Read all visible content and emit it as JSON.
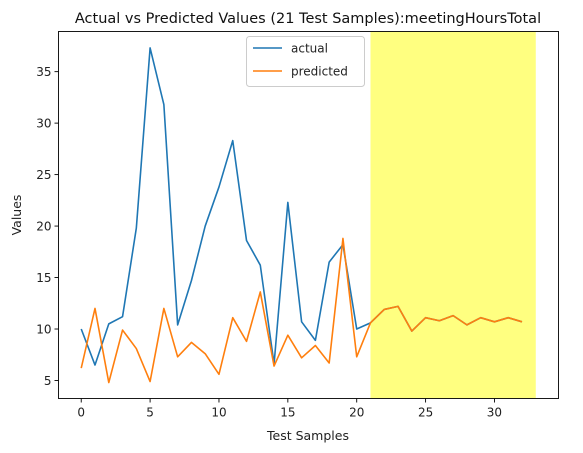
{
  "chart_data": {
    "type": "line",
    "title": "Actual vs Predicted Values (21 Test Samples):meetingHoursTotal",
    "xlabel": "Test Samples",
    "ylabel": "Values",
    "xlim": [
      -1.65,
      34.65
    ],
    "ylim": [
      3.25,
      38.9
    ],
    "xticks": [
      0,
      5,
      10,
      15,
      20,
      25,
      30
    ],
    "yticks": [
      5,
      10,
      15,
      20,
      25,
      30,
      35
    ],
    "grid": false,
    "legend_position": "upper center",
    "highlight": {
      "x_start": 21,
      "x_end": 33,
      "color": "#ffff80"
    },
    "series": [
      {
        "name": "actual",
        "color": "#1f77b4",
        "x": [
          0,
          1,
          2,
          3,
          4,
          5,
          6,
          7,
          8,
          9,
          10,
          11,
          12,
          13,
          14,
          15,
          16,
          17,
          18,
          19,
          20,
          21,
          22,
          23,
          24,
          25,
          26,
          27,
          28,
          29,
          30,
          31,
          32
        ],
        "values": [
          10.0,
          6.5,
          10.5,
          11.2,
          19.8,
          37.3,
          31.8,
          10.4,
          14.7,
          20.0,
          23.8,
          28.3,
          18.6,
          16.2,
          6.6,
          22.3,
          10.7,
          8.9,
          16.5,
          18.2,
          10.0,
          10.6,
          11.9,
          12.2,
          9.8,
          11.1,
          10.8,
          11.3,
          10.4,
          11.1,
          10.7,
          11.1,
          10.7
        ]
      },
      {
        "name": "predicted",
        "color": "#ff7f0e",
        "x": [
          0,
          1,
          2,
          3,
          4,
          5,
          6,
          7,
          8,
          9,
          10,
          11,
          12,
          13,
          14,
          15,
          16,
          17,
          18,
          19,
          20,
          21,
          22,
          23,
          24,
          25,
          26,
          27,
          28,
          29,
          30,
          31,
          32
        ],
        "values": [
          6.2,
          12.0,
          4.8,
          9.9,
          8.1,
          4.9,
          12.0,
          7.3,
          8.7,
          7.6,
          5.6,
          11.1,
          8.8,
          13.6,
          6.4,
          9.4,
          7.2,
          8.4,
          6.7,
          18.8,
          7.3,
          10.6,
          11.9,
          12.2,
          9.8,
          11.1,
          10.8,
          11.3,
          10.4,
          11.1,
          10.7,
          11.1,
          10.7
        ]
      }
    ]
  }
}
